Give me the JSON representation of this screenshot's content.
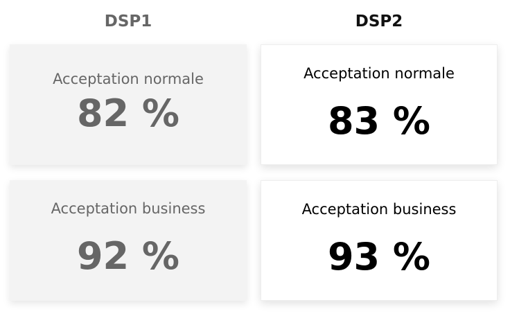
{
  "columns": [
    {
      "title": "DSP1",
      "cards": [
        {
          "label": "Acceptation normale",
          "value": "82 %"
        },
        {
          "label": "Acceptation business",
          "value": "92 %"
        }
      ]
    },
    {
      "title": "DSP2",
      "cards": [
        {
          "label": "Acceptation normale",
          "value": "83 %"
        },
        {
          "label": "Acceptation business",
          "value": "93 %"
        }
      ]
    }
  ]
}
